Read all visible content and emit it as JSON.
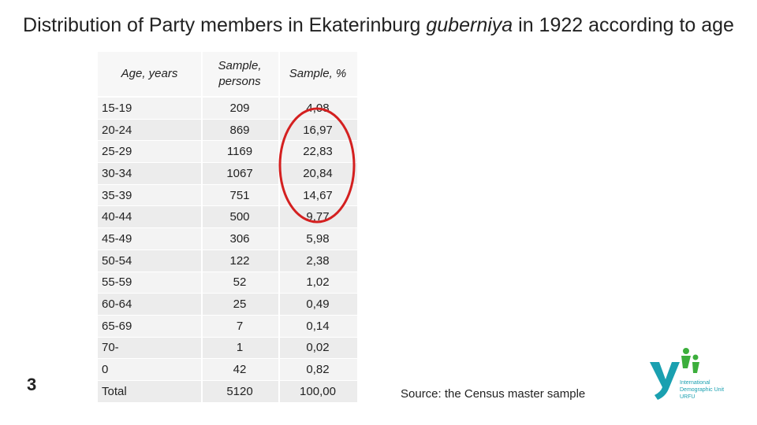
{
  "title_before": "Distribution of Party members in Ekaterinburg ",
  "title_italic": "guberniya",
  "title_after": " in 1922 according to age",
  "table": {
    "headers": [
      "Age, years",
      "Sample, persons",
      "Sample, %"
    ],
    "rows": [
      [
        "15-19",
        "209",
        "4,08"
      ],
      [
        "20-24",
        "869",
        "16,97"
      ],
      [
        "25-29",
        "1169",
        "22,83"
      ],
      [
        "30-34",
        "1067",
        "20,84"
      ],
      [
        "35-39",
        "751",
        "14,67"
      ],
      [
        "40-44",
        "500",
        "9,77"
      ],
      [
        "45-49",
        "306",
        "5,98"
      ],
      [
        "50-54",
        "122",
        "2,38"
      ],
      [
        "55-59",
        "52",
        "1,02"
      ],
      [
        "60-64",
        "25",
        "0,49"
      ],
      [
        "65-69",
        "7",
        "0,14"
      ],
      [
        "70-",
        "1",
        "0,02"
      ],
      [
        "0",
        "42",
        "0,82"
      ],
      [
        "Total",
        "5120",
        "100,00"
      ]
    ]
  },
  "slide_number": "3",
  "source": "Source: the Census master sample",
  "logo": {
    "icon": "idu-logo",
    "lines": [
      "International",
      "Demographic Unit",
      "URFU"
    ]
  },
  "colors": {
    "highlight_circle": "#d42020",
    "logo_teal": "#1aa0b0",
    "logo_green": "#3cae3c"
  }
}
